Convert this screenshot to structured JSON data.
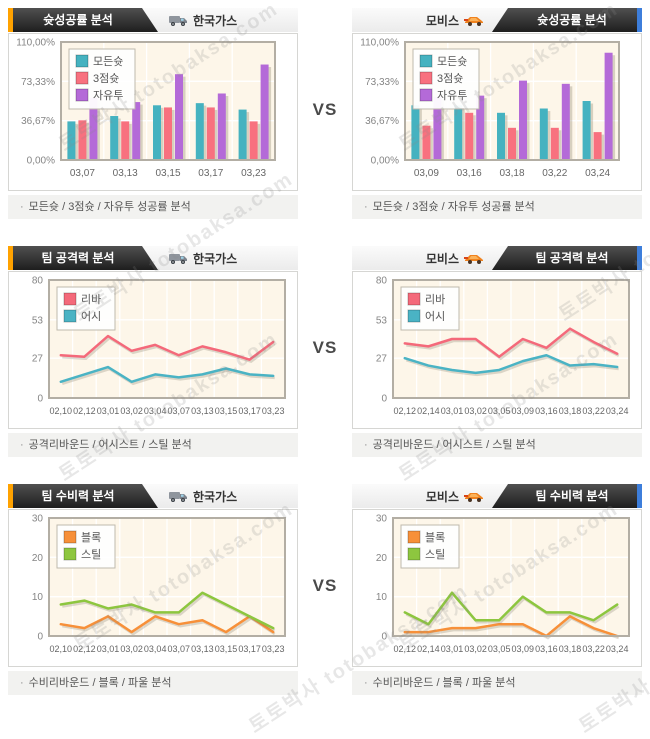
{
  "page": {
    "vs": "VS",
    "bullet": "·"
  },
  "teams": {
    "left": {
      "name": "한국가스",
      "icon": "truck-icon"
    },
    "right": {
      "name": "모비스",
      "icon": "race-car-icon"
    }
  },
  "sections": [
    {
      "title": "슛성공률 분석",
      "caption": "모든슛 / 3점슛 / 자유투 성공률 분석"
    },
    {
      "title": "팀 공격력 분석",
      "caption": "공격리바운드 / 어시스트 / 스틸 분석"
    },
    {
      "title": "팀 수비력 분석",
      "caption": "수비리바운드 / 블록 / 파울 분석"
    }
  ],
  "watermark": {
    "text": "토토박사  totobaksa.com"
  },
  "colors": {
    "accent_orange": "#ffa200",
    "accent_blue": "#3d7edb",
    "plot_bg": "#fdf6e9",
    "plot_border": "#b3aea4"
  },
  "chart_data": [
    {
      "id": "shooting-hankookgas",
      "team": "한국가스",
      "type": "bar",
      "title": "슛성공률 분석 - 한국가스",
      "categories": [
        "03,07",
        "03,13",
        "03,15",
        "03,17",
        "03,23"
      ],
      "series": [
        {
          "name": "모든슛",
          "color": "#45b2c0",
          "values": [
            36,
            41,
            51,
            53,
            47
          ]
        },
        {
          "name": "3점슛",
          "color": "#f8717f",
          "values": [
            37,
            36,
            49,
            49,
            36
          ]
        },
        {
          "name": "자유투",
          "color": "#b46ad8",
          "values": [
            58,
            54,
            80,
            62,
            89
          ]
        }
      ],
      "ylim": [
        0,
        110
      ],
      "yticks": [
        {
          "v": 110,
          "label": "110,00%"
        },
        {
          "v": 73.33,
          "label": "73,33%"
        },
        {
          "v": 36.67,
          "label": "36,67%"
        },
        {
          "v": 0,
          "label": "0,00%"
        }
      ],
      "legend_position": "top-left",
      "grid": true
    },
    {
      "id": "shooting-mobis",
      "team": "모비스",
      "type": "bar",
      "title": "슛성공률 분석 - 모비스",
      "categories": [
        "03,09",
        "03,16",
        "03,18",
        "03,22",
        "03,24"
      ],
      "series": [
        {
          "name": "모든슛",
          "color": "#45b2c0",
          "values": [
            51,
            51,
            44,
            48,
            55
          ]
        },
        {
          "name": "3점슛",
          "color": "#f8717f",
          "values": [
            32,
            44,
            30,
            30,
            26
          ]
        },
        {
          "name": "자유투",
          "color": "#b46ad8",
          "values": [
            59,
            60,
            74,
            71,
            100
          ]
        }
      ],
      "ylim": [
        0,
        110
      ],
      "yticks": [
        {
          "v": 110,
          "label": "110,00%"
        },
        {
          "v": 73.33,
          "label": "73,33%"
        },
        {
          "v": 36.67,
          "label": "36,67%"
        },
        {
          "v": 0,
          "label": "0,00%"
        }
      ],
      "legend_position": "top-left",
      "grid": true
    },
    {
      "id": "offense-hankookgas",
      "team": "한국가스",
      "type": "line",
      "title": "팀 공격력 분석 - 한국가스",
      "categories": [
        "02,10",
        "02,12",
        "03,01",
        "03,02",
        "03,04",
        "03,07",
        "03,13",
        "03,15",
        "03,17",
        "03,23"
      ],
      "series": [
        {
          "name": "리바",
          "color": "#f4697a",
          "values": [
            29,
            28,
            42,
            32,
            36,
            29,
            35,
            31,
            26,
            38
          ]
        },
        {
          "name": "어시",
          "color": "#4ab3c4",
          "values": [
            11,
            16,
            21,
            11,
            16,
            14,
            16,
            20,
            16,
            15
          ]
        }
      ],
      "ylim": [
        0,
        80
      ],
      "yticks": [
        {
          "v": 80,
          "label": "80"
        },
        {
          "v": 53,
          "label": "53"
        },
        {
          "v": 27,
          "label": "27"
        },
        {
          "v": 0,
          "label": "0"
        }
      ],
      "legend_position": "top-left",
      "grid": true
    },
    {
      "id": "offense-mobis",
      "team": "모비스",
      "type": "line",
      "title": "팀 공격력 분석 - 모비스",
      "categories": [
        "02,12",
        "02,14",
        "03,01",
        "03,02",
        "03,05",
        "03,09",
        "03,16",
        "03,18",
        "03,22",
        "03,24"
      ],
      "series": [
        {
          "name": "리바",
          "color": "#f4697a",
          "values": [
            37,
            35,
            40,
            40,
            28,
            40,
            34,
            47,
            38,
            30
          ]
        },
        {
          "name": "어시",
          "color": "#4ab3c4",
          "values": [
            27,
            22,
            19,
            17,
            19,
            25,
            29,
            22,
            23,
            21
          ]
        }
      ],
      "ylim": [
        0,
        80
      ],
      "yticks": [
        {
          "v": 80,
          "label": "80"
        },
        {
          "v": 53,
          "label": "53"
        },
        {
          "v": 27,
          "label": "27"
        },
        {
          "v": 0,
          "label": "0"
        }
      ],
      "legend_position": "top-left",
      "grid": true
    },
    {
      "id": "defense-hankookgas",
      "team": "한국가스",
      "type": "line",
      "title": "팀 수비력 분석 - 한국가스",
      "categories": [
        "02,10",
        "02,12",
        "03,01",
        "03,02",
        "03,04",
        "03,07",
        "03,13",
        "03,15",
        "03,17",
        "03,23"
      ],
      "series": [
        {
          "name": "블록",
          "color": "#f79039",
          "values": [
            3,
            2,
            5,
            1,
            5,
            3,
            4,
            1,
            5,
            1
          ]
        },
        {
          "name": "스틸",
          "color": "#8dc63f",
          "values": [
            8,
            9,
            7,
            8,
            6,
            6,
            11,
            8,
            5,
            2
          ]
        }
      ],
      "ylim": [
        0,
        30
      ],
      "yticks": [
        {
          "v": 30,
          "label": "30"
        },
        {
          "v": 20,
          "label": "20"
        },
        {
          "v": 10,
          "label": "10"
        },
        {
          "v": 0,
          "label": "0"
        }
      ],
      "legend_position": "top-left",
      "grid": true
    },
    {
      "id": "defense-mobis",
      "team": "모비스",
      "type": "line",
      "title": "팀 수비력 분석 - 모비스",
      "categories": [
        "02,12",
        "02,14",
        "03,01",
        "03,02",
        "03,05",
        "03,09",
        "03,16",
        "03,18",
        "03,22",
        "03,24"
      ],
      "series": [
        {
          "name": "블록",
          "color": "#f79039",
          "values": [
            1,
            1,
            2,
            2,
            3,
            3,
            0,
            5,
            2,
            0
          ]
        },
        {
          "name": "스틸",
          "color": "#8dc63f",
          "values": [
            6,
            3,
            11,
            4,
            4,
            10,
            6,
            6,
            4,
            8
          ]
        }
      ],
      "ylim": [
        0,
        30
      ],
      "yticks": [
        {
          "v": 30,
          "label": "30"
        },
        {
          "v": 20,
          "label": "20"
        },
        {
          "v": 10,
          "label": "10"
        },
        {
          "v": 0,
          "label": "0"
        }
      ],
      "legend_position": "top-left",
      "grid": true
    }
  ]
}
